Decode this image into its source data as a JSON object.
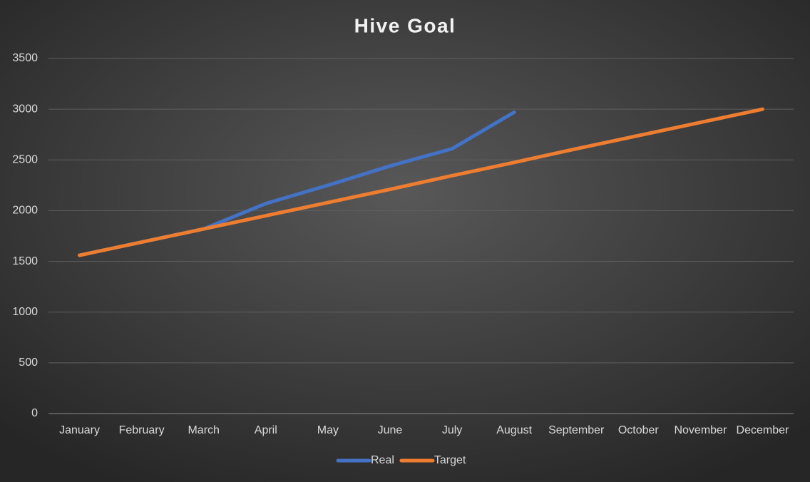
{
  "chart_data": {
    "type": "line",
    "title": "Hive Goal",
    "categories": [
      "January",
      "February",
      "March",
      "April",
      "May",
      "June",
      "July",
      "August",
      "September",
      "October",
      "November",
      "December"
    ],
    "series": [
      {
        "name": "Real",
        "color": "#4472c4",
        "values": [
          1560,
          1690,
          1820,
          2070,
          2250,
          2440,
          2610,
          2970,
          null,
          null,
          null,
          null
        ]
      },
      {
        "name": "Target",
        "color": "#ed7d31",
        "values": [
          1560,
          1690,
          1820,
          1950,
          2080,
          2210,
          2345,
          2475,
          2610,
          2740,
          2870,
          3000
        ]
      }
    ],
    "ylim": [
      0,
      3500
    ],
    "yticks": [
      0,
      500,
      1000,
      1500,
      2000,
      2500,
      3000,
      3500
    ],
    "grid": true,
    "legend": "bottom"
  }
}
